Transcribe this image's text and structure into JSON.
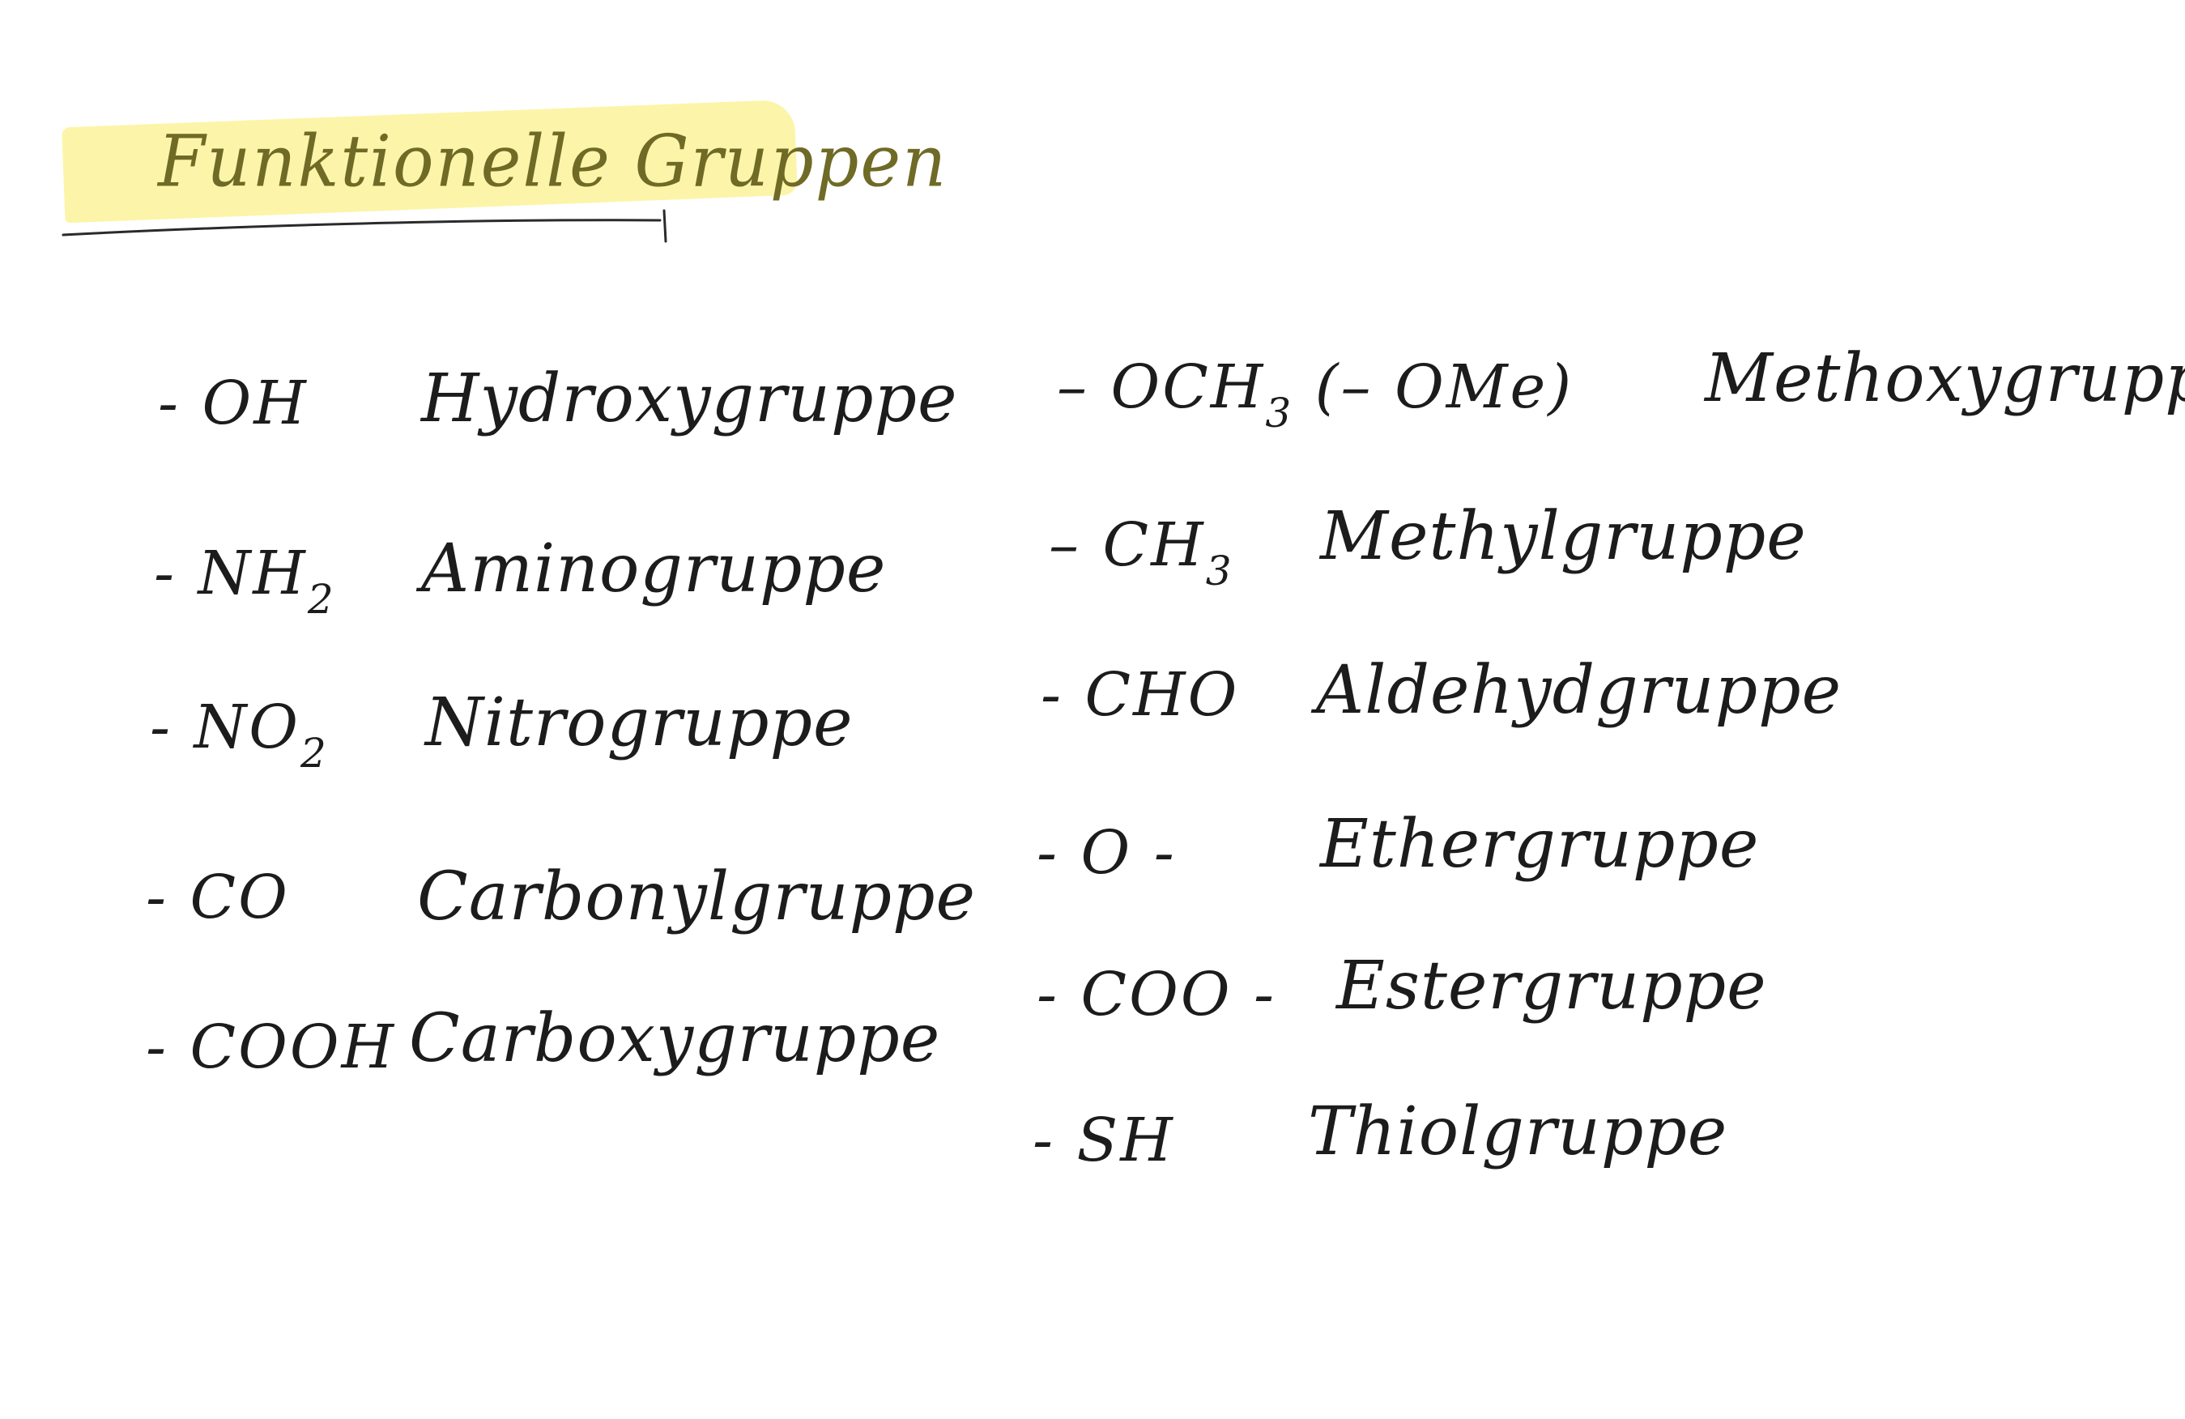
{
  "title": "Funktionelle Gruppen",
  "left_column": [
    {
      "formula_prefix": "- OH",
      "sub": "",
      "name": "Hydroxygruppe"
    },
    {
      "formula_prefix": "- NH",
      "sub": "2",
      "name": "Aminogruppe"
    },
    {
      "formula_prefix": "- NO",
      "sub": "2",
      "name": "Nitrogruppe"
    },
    {
      "formula_prefix": "- CO",
      "sub": "",
      "name": "Carbonylgruppe"
    },
    {
      "formula_prefix": "- COOH",
      "sub": "",
      "name": "Carboxygruppe"
    }
  ],
  "right_column": [
    {
      "formula_prefix": "– OCH",
      "sub": "3",
      "suffix": " (– OMe)",
      "name": "Methoxygruppe"
    },
    {
      "formula_prefix": "– CH",
      "sub": "3",
      "suffix": "",
      "name": "Methylgruppe"
    },
    {
      "formula_prefix": "- CHO",
      "sub": "",
      "suffix": "",
      "name": "Aldehydgruppe"
    },
    {
      "formula_prefix": "- O -",
      "sub": "",
      "suffix": "",
      "name": "Ethergruppe"
    },
    {
      "formula_prefix": "- COO -",
      "sub": "",
      "suffix": "",
      "name": "Estergruppe"
    },
    {
      "formula_prefix": "- SH",
      "sub": "",
      "suffix": "",
      "name": "Thiolgruppe"
    }
  ],
  "colors": {
    "ink": "#1c1c1c",
    "highlight": "#fbf39a",
    "title_ink": "#6f6a26"
  }
}
